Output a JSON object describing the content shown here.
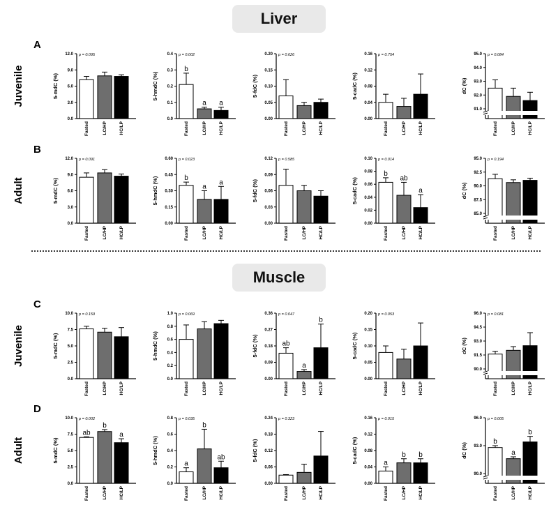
{
  "sections": [
    {
      "title": "Liver",
      "rows": [
        {
          "letter": "A",
          "label": "Juvenile"
        },
        {
          "letter": "B",
          "label": "Adult"
        }
      ]
    },
    {
      "title": "Muscle",
      "rows": [
        {
          "letter": "C",
          "label": "Juvenile"
        },
        {
          "letter": "D",
          "label": "Adult"
        }
      ]
    }
  ],
  "colors": {
    "Fasted": "#ffffff",
    "LC/HP": "#6e6e6e",
    "HC/LP": "#000000"
  },
  "chart_data": [
    {
      "type": "bar",
      "row": "A",
      "ylabel": "5-mdC (%)",
      "p": "p = 0.095",
      "categories": [
        "Fasted",
        "LC/HP",
        "HC/LP"
      ],
      "values": [
        7.2,
        7.9,
        7.8
      ],
      "errors": [
        0.6,
        0.7,
        0.3
      ],
      "letters": [
        "",
        "",
        ""
      ],
      "ylim": [
        0,
        12
      ],
      "ticks": [
        "0.0",
        "3.0",
        "6.0",
        "9.0",
        "12.0"
      ]
    },
    {
      "type": "bar",
      "row": "A",
      "ylabel": "5-hmdC (%)",
      "p": "p = 0.002",
      "categories": [
        "Fasted",
        "LC/HP",
        "HC/LP"
      ],
      "values": [
        0.21,
        0.06,
        0.05
      ],
      "errors": [
        0.07,
        0.01,
        0.02
      ],
      "letters": [
        "b",
        "a",
        "a"
      ],
      "ylim": [
        0,
        0.4
      ],
      "ticks": [
        "0.0",
        "0.1",
        "0.2",
        "0.3",
        "0.4"
      ]
    },
    {
      "type": "bar",
      "row": "A",
      "ylabel": "5-fdC (%)",
      "p": "p = 0.626",
      "categories": [
        "Fasted",
        "LC/HP",
        "HC/LP"
      ],
      "values": [
        0.07,
        0.04,
        0.05
      ],
      "errors": [
        0.05,
        0.01,
        0.01
      ],
      "letters": [
        "",
        "",
        ""
      ],
      "ylim": [
        0,
        0.2
      ],
      "ticks": [
        "0.00",
        "0.05",
        "0.10",
        "0.15",
        "0.20"
      ]
    },
    {
      "type": "bar",
      "row": "A",
      "ylabel": "5-cadC (%)",
      "p": "p = 0.754",
      "categories": [
        "Fasted",
        "LC/HP",
        "HC/LP"
      ],
      "values": [
        0.04,
        0.03,
        0.06
      ],
      "errors": [
        0.02,
        0.02,
        0.05
      ],
      "letters": [
        "",
        "",
        ""
      ],
      "ylim": [
        0,
        0.16
      ],
      "ticks": [
        "0.00",
        "0.04",
        "0.08",
        "0.12",
        "0.16"
      ]
    },
    {
      "type": "bar",
      "row": "A",
      "ylabel": "dC (%)",
      "p": "p = 0.084",
      "categories": [
        "Fasted",
        "LC/HP",
        "HC/LP"
      ],
      "values": [
        92.5,
        91.9,
        91.6
      ],
      "errors": [
        0.6,
        0.6,
        0.6
      ],
      "letters": [
        "",
        "",
        ""
      ],
      "ylim": [
        91,
        95
      ],
      "ticks": [
        "91.0",
        "92.0",
        "93.0",
        "94.0",
        "95.0"
      ],
      "broken": true
    },
    {
      "type": "bar",
      "row": "B",
      "ylabel": "5-mdC (%)",
      "p": "p = 0.091",
      "categories": [
        "Fasted",
        "LC/HP",
        "HC/LP"
      ],
      "values": [
        8.5,
        9.3,
        8.7
      ],
      "errors": [
        0.8,
        0.6,
        0.4
      ],
      "letters": [
        "",
        "",
        ""
      ],
      "ylim": [
        0,
        12
      ],
      "ticks": [
        "0.0",
        "3.0",
        "6.0",
        "9.0",
        "12.0"
      ]
    },
    {
      "type": "bar",
      "row": "B",
      "ylabel": "5-hmdC (%)",
      "p": "p = 0.023",
      "categories": [
        "Fasted",
        "LC/HP",
        "HC/LP"
      ],
      "values": [
        0.35,
        0.22,
        0.22
      ],
      "errors": [
        0.03,
        0.08,
        0.12
      ],
      "letters": [
        "b",
        "a",
        "a"
      ],
      "ylim": [
        0,
        0.6
      ],
      "ticks": [
        "0.00",
        "0.15",
        "0.30",
        "0.45",
        "0.60"
      ]
    },
    {
      "type": "bar",
      "row": "B",
      "ylabel": "5-fdC (%)",
      "p": "p = 0.585",
      "categories": [
        "Fasted",
        "LC/HP",
        "HC/LP"
      ],
      "values": [
        0.07,
        0.06,
        0.05
      ],
      "errors": [
        0.03,
        0.01,
        0.01
      ],
      "letters": [
        "",
        "",
        ""
      ],
      "ylim": [
        0,
        0.12
      ],
      "ticks": [
        "0.00",
        "0.03",
        "0.06",
        "0.09",
        "0.12"
      ]
    },
    {
      "type": "bar",
      "row": "B",
      "ylabel": "5-cadC (%)",
      "p": "p = 0.014",
      "categories": [
        "Fasted",
        "LC/HP",
        "HC/LP"
      ],
      "values": [
        0.063,
        0.043,
        0.024
      ],
      "errors": [
        0.007,
        0.02,
        0.02
      ],
      "letters": [
        "b",
        "ab",
        "a"
      ],
      "ylim": [
        0,
        0.1
      ],
      "ticks": [
        "0.00",
        "0.02",
        "0.04",
        "0.06",
        "0.08",
        "0.10"
      ]
    },
    {
      "type": "bar",
      "row": "B",
      "ylabel": "dC (%)",
      "p": "p = 0.194",
      "categories": [
        "Fasted",
        "LC/HP",
        "HC/LP"
      ],
      "values": [
        91.3,
        90.6,
        91.0
      ],
      "errors": [
        0.8,
        0.5,
        0.4
      ],
      "letters": [
        "",
        "",
        ""
      ],
      "ylim": [
        85,
        95
      ],
      "ticks": [
        "85.0",
        "87.5",
        "90.0",
        "92.5",
        "95.0"
      ],
      "broken": true
    },
    {
      "type": "bar",
      "row": "C",
      "ylabel": "5-mdC (%)",
      "p": "p = 0.159",
      "categories": [
        "Fasted",
        "LC/HP",
        "HC/LP"
      ],
      "values": [
        7.6,
        7.1,
        6.4
      ],
      "errors": [
        0.4,
        0.6,
        1.4
      ],
      "letters": [
        "",
        "",
        ""
      ],
      "ylim": [
        0,
        10
      ],
      "ticks": [
        "0.0",
        "2.5",
        "5.0",
        "7.5",
        "10.0"
      ]
    },
    {
      "type": "bar",
      "row": "C",
      "ylabel": "5-hmdC (%)",
      "p": "p = 0.069",
      "categories": [
        "Fasted",
        "LC/HP",
        "HC/LP"
      ],
      "values": [
        0.6,
        0.76,
        0.84
      ],
      "errors": [
        0.22,
        0.11,
        0.05
      ],
      "letters": [
        "",
        "",
        ""
      ],
      "ylim": [
        0,
        1
      ],
      "ticks": [
        "0.0",
        "0.2",
        "0.4",
        "0.6",
        "0.8",
        "1.0"
      ]
    },
    {
      "type": "bar",
      "row": "C",
      "ylabel": "5-fdC (%)",
      "p": "p = 0.047",
      "categories": [
        "Fasted",
        "LC/HP",
        "HC/LP"
      ],
      "values": [
        0.14,
        0.04,
        0.17
      ],
      "errors": [
        0.03,
        0.01,
        0.13
      ],
      "letters": [
        "ab",
        "a",
        "b"
      ],
      "ylim": [
        0,
        0.36
      ],
      "ticks": [
        "0.00",
        "0.09",
        "0.18",
        "0.27",
        "0.36"
      ]
    },
    {
      "type": "bar",
      "row": "C",
      "ylabel": "5-cadC (%)",
      "p": "p = 0.053",
      "categories": [
        "Fasted",
        "LC/HP",
        "HC/LP"
      ],
      "values": [
        0.08,
        0.06,
        0.1
      ],
      "errors": [
        0.02,
        0.03,
        0.07
      ],
      "letters": [
        "",
        "",
        ""
      ],
      "ylim": [
        0,
        0.2
      ],
      "ticks": [
        "0.00",
        "0.05",
        "0.10",
        "0.15",
        "0.20"
      ]
    },
    {
      "type": "bar",
      "row": "C",
      "ylabel": "dC (%)",
      "p": "p = 0.081",
      "categories": [
        "Fasted",
        "LC/HP",
        "HC/LP"
      ],
      "values": [
        91.6,
        92.0,
        92.5
      ],
      "errors": [
        0.3,
        0.4,
        1.4
      ],
      "letters": [
        "",
        "",
        ""
      ],
      "ylim": [
        90,
        96
      ],
      "ticks": [
        "90.0",
        "91.5",
        "93.0",
        "94.5",
        "96.0"
      ],
      "broken": true
    },
    {
      "type": "bar",
      "row": "D",
      "ylabel": "5-mdC (%)",
      "p": "p = 0.002",
      "categories": [
        "Fasted",
        "LC/HP",
        "HC/LP"
      ],
      "values": [
        7.0,
        7.9,
        6.2
      ],
      "errors": [
        0.1,
        0.3,
        0.6
      ],
      "letters": [
        "ab",
        "b",
        "a"
      ],
      "ylim": [
        0,
        10
      ],
      "ticks": [
        "0.0",
        "2.5",
        "5.0",
        "7.5",
        "10.0"
      ]
    },
    {
      "type": "bar",
      "row": "D",
      "ylabel": "5-hmdC (%)",
      "p": "p = 0.035",
      "categories": [
        "Fasted",
        "LC/HP",
        "HC/LP"
      ],
      "values": [
        0.14,
        0.42,
        0.19
      ],
      "errors": [
        0.05,
        0.24,
        0.08
      ],
      "letters": [
        "a",
        "b",
        "ab"
      ],
      "ylim": [
        0,
        0.8
      ],
      "ticks": [
        "0.0",
        "0.2",
        "0.4",
        "0.6",
        "0.8"
      ]
    },
    {
      "type": "bar",
      "row": "D",
      "ylabel": "5-fdC (%)",
      "p": "p = 0.323",
      "categories": [
        "Fasted",
        "LC/HP",
        "HC/LP"
      ],
      "values": [
        0.03,
        0.04,
        0.1
      ],
      "errors": [
        0.002,
        0.03,
        0.09
      ],
      "letters": [
        "",
        "",
        ""
      ],
      "ylim": [
        0,
        0.24
      ],
      "ticks": [
        "0.00",
        "0.06",
        "0.12",
        "0.18",
        "0.24"
      ]
    },
    {
      "type": "bar",
      "row": "D",
      "ylabel": "5-cadC (%)",
      "p": "p = 0.015",
      "categories": [
        "Fasted",
        "LC/HP",
        "HC/LP"
      ],
      "values": [
        0.03,
        0.05,
        0.05
      ],
      "errors": [
        0.01,
        0.01,
        0.01
      ],
      "letters": [
        "a",
        "b",
        "b"
      ],
      "ylim": [
        0,
        0.16
      ],
      "ticks": [
        "0.00",
        "0.04",
        "0.08",
        "0.12",
        "0.16"
      ]
    },
    {
      "type": "bar",
      "row": "D",
      "ylabel": "dC (%)",
      "p": "p = 0.005",
      "categories": [
        "Fasted",
        "LC/HP",
        "HC/LP"
      ],
      "values": [
        92.8,
        91.6,
        93.4
      ],
      "errors": [
        0.2,
        0.2,
        0.6
      ],
      "letters": [
        "b",
        "a",
        "b"
      ],
      "ylim": [
        90,
        96
      ],
      "ticks": [
        "90.0",
        "93.0",
        "96.0"
      ],
      "broken": true
    }
  ]
}
